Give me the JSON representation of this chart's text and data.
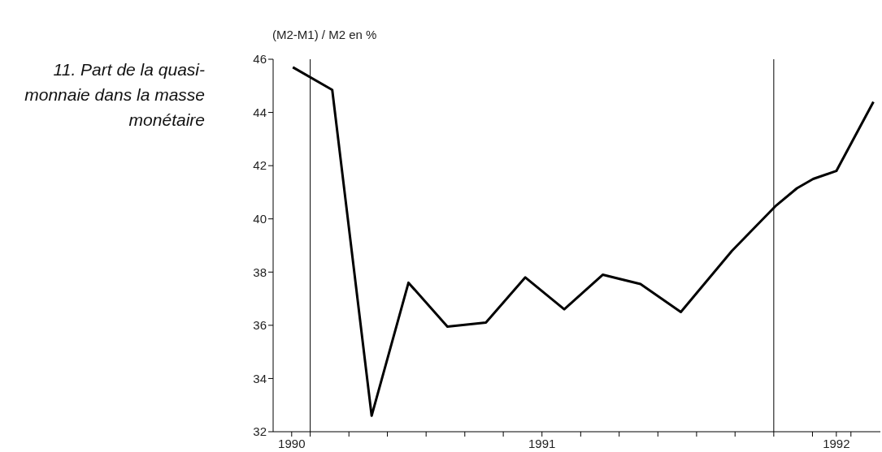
{
  "chart_data": {
    "type": "line",
    "title": "11. Part de la quasi-monnaie dans la masse monétaire",
    "ylabel": "(M2-M1) / M2 en %",
    "x": [
      1989.925,
      1990.095,
      1990.265,
      1990.424,
      1990.592,
      1990.758,
      1990.928,
      1991.096,
      1991.262,
      1991.425,
      1991.599,
      1991.82,
      1992.01,
      1992.1,
      1992.17,
      1992.27,
      1992.43
    ],
    "series": [
      {
        "color": "#000000",
        "values": [
          45.7,
          44.85,
          32.6,
          37.6,
          35.95,
          36.1,
          37.8,
          36.6,
          37.9,
          37.55,
          36.5,
          38.8,
          40.5,
          41.15,
          41.5,
          41.8,
          44.4
        ]
      }
    ],
    "xlim": [
      1989.84,
      1992.46
    ],
    "xticks": [
      {
        "value": 1989.92,
        "label": "1990"
      },
      {
        "value": 1990,
        "label": null
      },
      {
        "value": 1990.167,
        "label": null
      },
      {
        "value": 1990.333,
        "label": null
      },
      {
        "value": 1990.5,
        "label": null
      },
      {
        "value": 1990.667,
        "label": null
      },
      {
        "value": 1990.833,
        "label": null
      },
      {
        "value": 1991,
        "label": "1991"
      },
      {
        "value": 1991.167,
        "label": null
      },
      {
        "value": 1991.333,
        "label": null
      },
      {
        "value": 1991.5,
        "label": null
      },
      {
        "value": 1991.667,
        "label": null
      },
      {
        "value": 1991.833,
        "label": null
      },
      {
        "value": 1992,
        "label": null
      },
      {
        "value": 1992.167,
        "label": null
      },
      {
        "value": 1992.27,
        "label": "1992"
      },
      {
        "value": 1992.333,
        "label": null
      }
    ],
    "ylim": [
      32,
      46
    ],
    "yticks": [
      32,
      34,
      36,
      38,
      40,
      42,
      44,
      46
    ],
    "ref_lines": [
      {
        "axis": "x",
        "value": 1990,
        "color": "#000000"
      },
      {
        "axis": "x",
        "value": 1992,
        "color": "#000000"
      }
    ],
    "grid": false,
    "legend": false,
    "marker": "none",
    "line_style": "solid"
  }
}
